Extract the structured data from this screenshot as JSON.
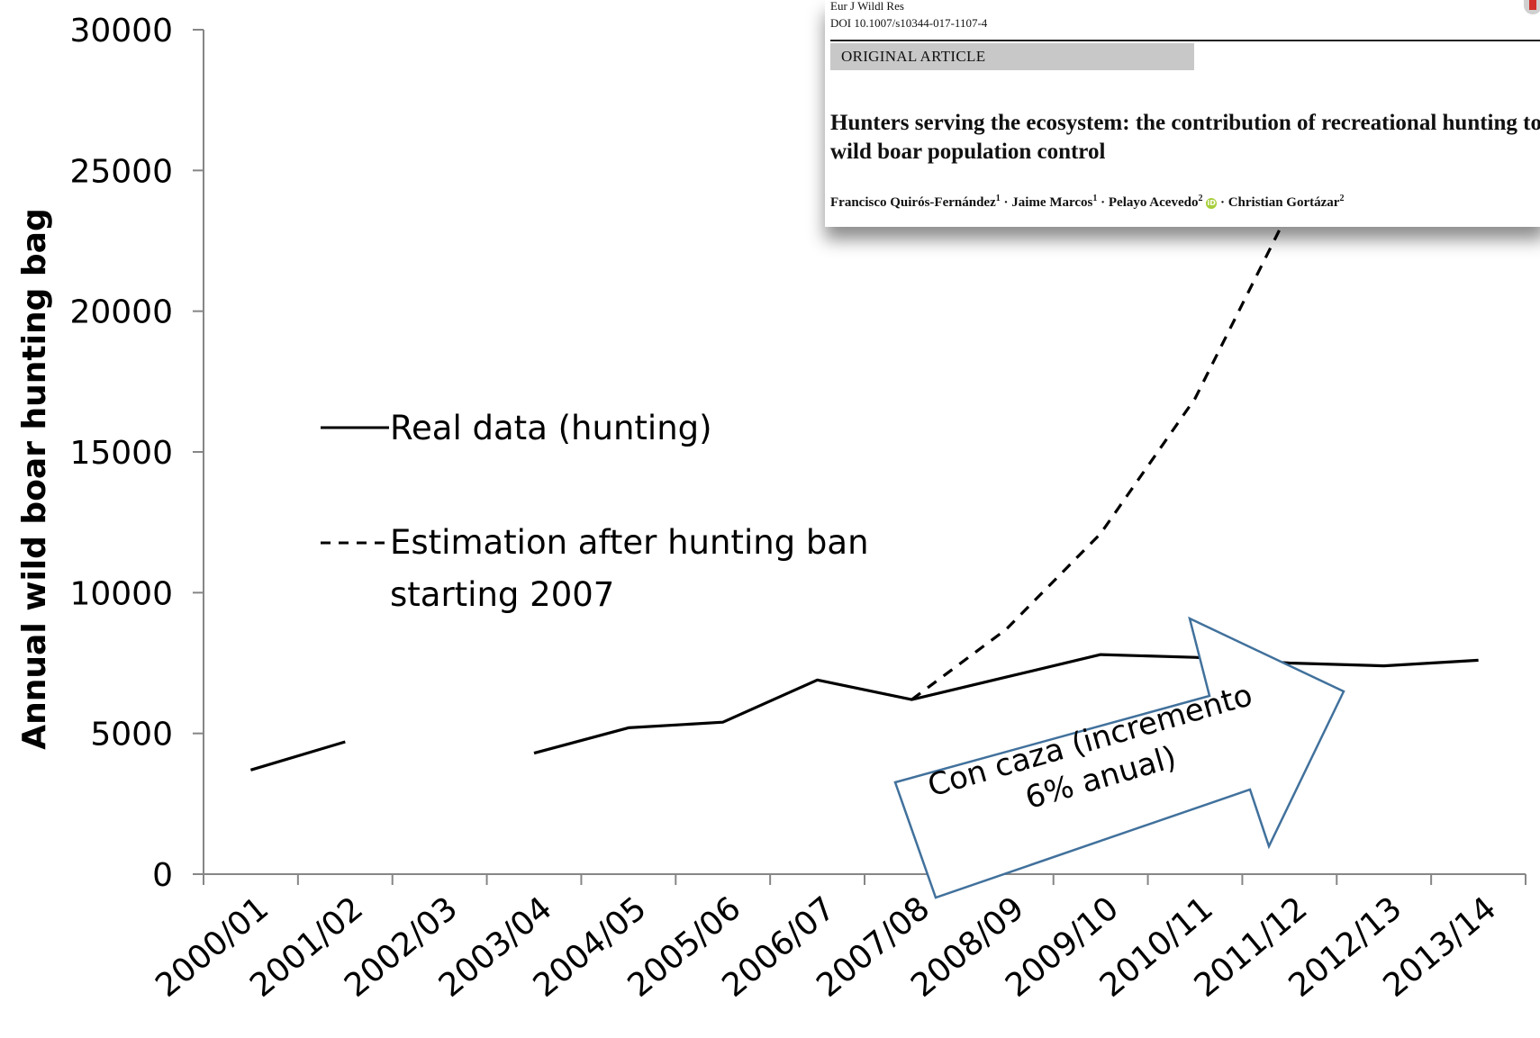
{
  "chart_data": {
    "type": "line",
    "ylabel": "Annual wild boar hunting bag",
    "xlabel": "",
    "ylim": [
      0,
      30000
    ],
    "yticks": [
      0,
      5000,
      10000,
      15000,
      20000,
      25000,
      30000
    ],
    "categories": [
      "2000/01",
      "2001/02",
      "2002/03",
      "2003/04",
      "2004/05",
      "2005/06",
      "2006/07",
      "2007/08",
      "2008/09",
      "2009/10",
      "2010/11",
      "2011/12",
      "2012/13",
      "2013/14"
    ],
    "series": [
      {
        "name": "Real data (hunting)",
        "style": "solid",
        "values": [
          3700,
          4700,
          null,
          4300,
          5200,
          5400,
          6900,
          6200,
          7000,
          7800,
          7700,
          7500,
          7400,
          7600
        ]
      },
      {
        "name": "Estimation after hunting ban starting 2007",
        "style": "dashed",
        "values": [
          null,
          null,
          null,
          null,
          null,
          null,
          null,
          6200,
          8700,
          12100,
          16900,
          23600,
          null,
          null
        ]
      }
    ],
    "grid": false,
    "legend_position": "left"
  },
  "annotation": {
    "arrow_text_line1": "Con caza (incremento",
    "arrow_text_line2": "6% anual)",
    "arrow_fill": "#ffffff",
    "arrow_stroke": "#41719c"
  },
  "paper": {
    "journal": "Eur J Wildl Res",
    "doi": "DOI 10.1007/s10344-017-1107-4",
    "article_type": "ORIGINAL ARTICLE",
    "title": "Hunters serving the ecosystem: the contribution of recreational hunting to wild boar population control",
    "authors": [
      {
        "name": "Francisco Quirós-Fernández",
        "sup": "1"
      },
      {
        "name": "Jaime Marcos",
        "sup": "1"
      },
      {
        "name": "Pelayo Acevedo",
        "sup": "2"
      },
      {
        "name": "Christian Gortázar",
        "sup": "2"
      }
    ]
  },
  "colors": {
    "line": "#000000",
    "axis": "#868686",
    "background": "#ffffff"
  }
}
